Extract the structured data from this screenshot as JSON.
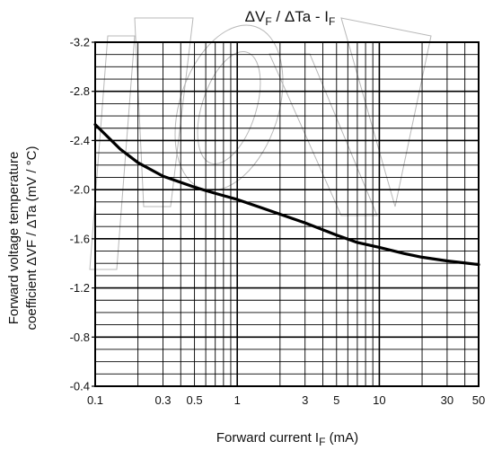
{
  "chart_data": {
    "type": "line",
    "title": "ΔVF / ΔTa - IF",
    "title_parts": {
      "delta_v": "ΔV",
      "f1": "F",
      "mid": " / ΔTa - I",
      "f2": "F"
    },
    "xlabel": "Forward current  IF  (mA)",
    "xlabel_parts": {
      "main": "Forward current  I",
      "sub": "F",
      "unit": "  (mA)"
    },
    "ylabel_line1": "Forward voltage temperature",
    "ylabel_line2": "coefficient ΔVF / ΔTa (mV / °C)",
    "x_scale": "log",
    "xlim": [
      0.1,
      50
    ],
    "ylim": [
      -0.4,
      -3.2
    ],
    "x_ticks": [
      0.1,
      0.3,
      0.5,
      1,
      3,
      5,
      10,
      30,
      50
    ],
    "x_tick_labels": [
      "0.1",
      "0.3",
      "0.5",
      "1",
      "3",
      "5",
      "10",
      "30",
      "50"
    ],
    "y_ticks": [
      -3.2,
      -2.8,
      -2.4,
      -2.0,
      -1.6,
      -1.2,
      -0.8,
      -0.4
    ],
    "y_tick_labels": [
      "-3.2",
      "-2.8",
      "-2.4",
      "-2.0",
      "-1.6",
      "-1.2",
      "-0.8",
      "-0.4"
    ],
    "grid": true,
    "series": [
      {
        "x": [
          0.1,
          0.15,
          0.2,
          0.3,
          0.5,
          0.7,
          1,
          1.5,
          2,
          3,
          5,
          7,
          10,
          15,
          20,
          30,
          50
        ],
        "y": [
          -2.53,
          -2.33,
          -2.22,
          -2.11,
          -2.02,
          -1.97,
          -1.92,
          -1.85,
          -1.8,
          -1.73,
          -1.63,
          -1.57,
          -1.53,
          -1.48,
          -1.45,
          -1.42,
          -1.39
        ]
      }
    ],
    "colors": {
      "line": "#000000",
      "grid": "#000000",
      "watermark": "#b8b8b8"
    }
  }
}
